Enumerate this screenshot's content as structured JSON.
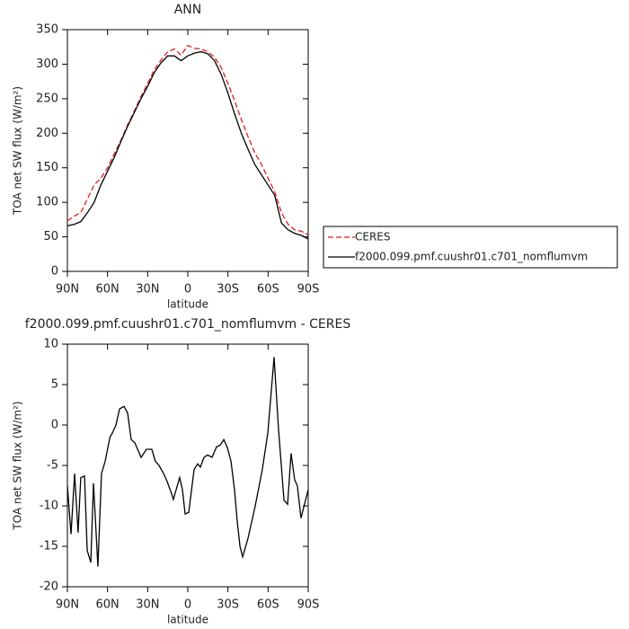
{
  "chart_data": [
    {
      "type": "line",
      "title": "ANN",
      "xlabel": "latitude",
      "ylabel": "TOA net SW flux (W/m²)",
      "x": [
        90,
        85,
        80,
        75,
        70,
        65,
        60,
        55,
        50,
        45,
        40,
        35,
        30,
        25,
        20,
        15,
        10,
        5,
        0,
        -5,
        -10,
        -15,
        -20,
        -25,
        -30,
        -35,
        -40,
        -45,
        -50,
        -55,
        -60,
        -65,
        -70,
        -75,
        -80,
        -85,
        -90
      ],
      "series": [
        {
          "name": "CERES",
          "color": "#e41a1c",
          "dashed": true,
          "values": [
            73,
            80,
            85,
            105,
            125,
            135,
            150,
            170,
            190,
            212,
            232,
            253,
            272,
            292,
            306,
            318,
            322,
            313,
            327,
            323,
            322,
            318,
            310,
            295,
            272,
            247,
            220,
            195,
            172,
            155,
            135,
            115,
            85,
            68,
            60,
            58,
            53
          ]
        },
        {
          "name": "f2000.099.pmf.cuushr01.c701_nomflumvm",
          "color": "#000000",
          "dashed": false,
          "values": [
            66,
            68,
            72,
            85,
            100,
            125,
            145,
            165,
            188,
            210,
            230,
            250,
            268,
            288,
            302,
            312,
            312,
            305,
            312,
            316,
            318,
            315,
            305,
            285,
            258,
            228,
            200,
            177,
            155,
            140,
            125,
            110,
            70,
            60,
            55,
            52,
            47
          ]
        }
      ],
      "xlim": [
        90,
        -90
      ],
      "xticks": [
        {
          "value": 90,
          "label": "90N"
        },
        {
          "value": 60,
          "label": "60N"
        },
        {
          "value": 30,
          "label": "30N"
        },
        0,
        {
          "value": -30,
          "label": "30S"
        },
        {
          "value": -60,
          "label": "60S"
        },
        {
          "value": -90,
          "label": "90S"
        }
      ],
      "ylim": [
        0,
        350
      ],
      "yticks": [
        0,
        50,
        100,
        150,
        200,
        250,
        300,
        350
      ],
      "legend": "right"
    },
    {
      "type": "line",
      "title": "f2000.099.pmf.cuushr01.c701_nomflumvm - CERES",
      "xlabel": "latitude",
      "ylabel": "TOA net SW flux (W/m²)",
      "x": [
        90,
        87.3,
        84.6,
        82,
        80,
        77.2,
        75.2,
        72.5,
        70.5,
        67.2,
        64.5,
        61.8,
        58.2,
        56.4,
        53.7,
        51,
        47.7,
        45,
        42.3,
        39.6,
        34.9,
        30.9,
        26.9,
        24.2,
        21.5,
        18.1,
        15.4,
        12.1,
        10.8,
        6.1,
        4,
        2,
        -0.7,
        -4.7,
        -7.4,
        -9.4,
        -12.1,
        -14.8,
        -18.1,
        -21.5,
        -24.2,
        -26.9,
        -29.6,
        -32.3,
        -34.9,
        -37,
        -39,
        -41,
        -45,
        -50.4,
        -55.7,
        -59.8,
        -64.5,
        -67.8,
        -71.9,
        -74.6,
        -77.2,
        -79.9,
        -81.9,
        -84.6,
        -90
      ],
      "series": [
        {
          "name": "f2000.099.pmf.cuushr01.c701_nomflumvm - CERES",
          "color": "#000000",
          "dashed": false,
          "values": [
            -7.5,
            -13.5,
            -6,
            -13.3,
            -6.5,
            -6.3,
            -15.5,
            -17,
            -7.2,
            -17.5,
            -6,
            -4.5,
            -1.5,
            -1,
            0,
            2,
            2.3,
            1.5,
            -1.8,
            -2.2,
            -4,
            -3,
            -3,
            -4.5,
            -5,
            -6,
            -7,
            -8.5,
            -9.2,
            -6.5,
            -8,
            -11,
            -10.8,
            -5.5,
            -4.8,
            -5.2,
            -4,
            -3.7,
            -4,
            -2.7,
            -2.5,
            -1.8,
            -2.8,
            -4.5,
            -8,
            -12,
            -15,
            -16.3,
            -14,
            -10,
            -5.5,
            -1,
            8.4,
            -0.5,
            -9.3,
            -9.8,
            -3.5,
            -6.8,
            -7.5,
            -11.5,
            -8
          ]
        }
      ],
      "xlim": [
        90,
        -90
      ],
      "xticks": [
        {
          "value": 90,
          "label": "90N"
        },
        {
          "value": 60,
          "label": "60N"
        },
        {
          "value": 30,
          "label": "30N"
        },
        0,
        {
          "value": -30,
          "label": "30S"
        },
        {
          "value": -60,
          "label": "60S"
        },
        {
          "value": -90,
          "label": "90S"
        }
      ],
      "ylim": [
        -20,
        10
      ],
      "yticks": [
        -20,
        -15,
        -10,
        -5,
        0,
        5,
        10
      ]
    }
  ]
}
